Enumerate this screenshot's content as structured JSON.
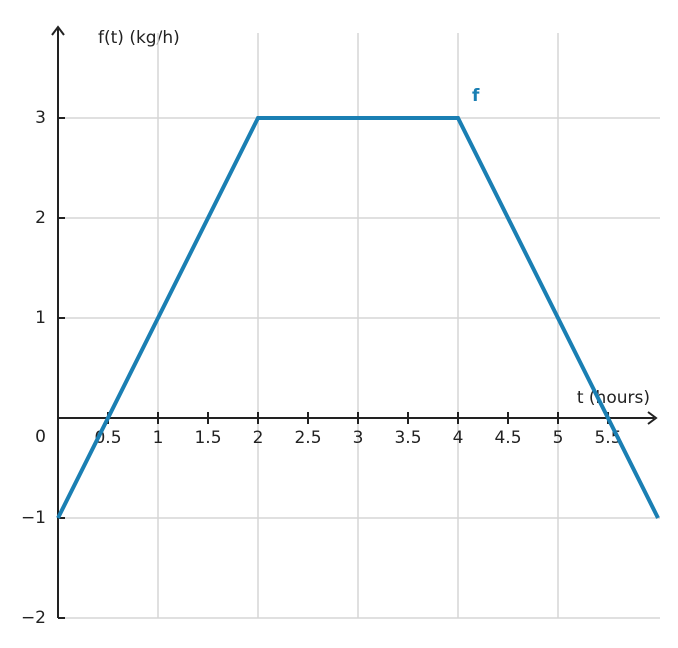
{
  "chart_data": {
    "type": "line",
    "y_label": "f(t) (kg/h)",
    "x_label": "t (hours)",
    "x": [
      0,
      2,
      4,
      6
    ],
    "series": [
      {
        "name": "f",
        "color": "#1a7fb3",
        "values": [
          -1,
          3,
          3,
          -1
        ]
      }
    ],
    "xlim": [
      0,
      6
    ],
    "ylim": [
      -2,
      3.93
    ],
    "xticks": [
      0.5,
      1,
      1.5,
      2,
      2.5,
      3,
      3.5,
      4,
      4.5,
      5,
      5.5
    ],
    "yticks": [
      {
        "value": -2,
        "label": "−2"
      },
      {
        "value": -1,
        "label": "−1"
      },
      0,
      1,
      2,
      3
    ],
    "grid": true
  }
}
